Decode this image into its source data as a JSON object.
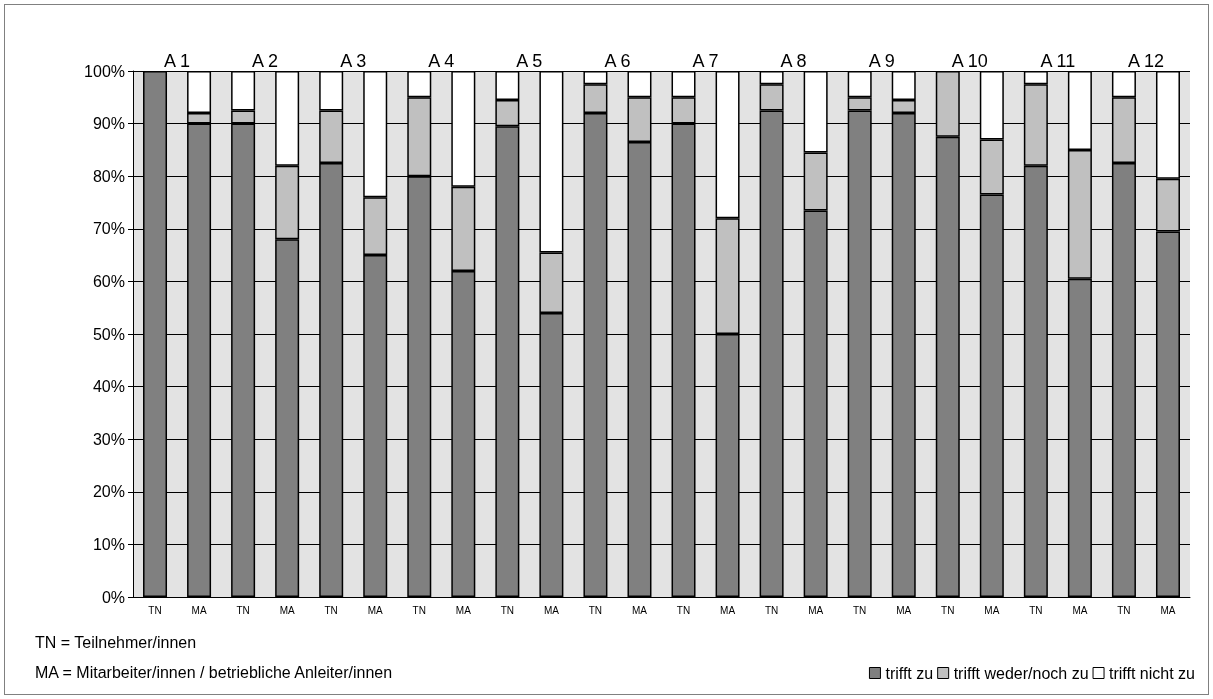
{
  "chart_data": {
    "type": "bar",
    "stacked": true,
    "categories": [
      "TN",
      "MA",
      "TN",
      "MA",
      "TN",
      "MA",
      "TN",
      "MA",
      "TN",
      "MA",
      "TN",
      "MA",
      "TN",
      "MA",
      "TN",
      "MA",
      "TN",
      "MA",
      "TN",
      "MA",
      "TN",
      "MA",
      "TN",
      "MA"
    ],
    "series": [
      {
        "name": "trifft zu",
        "color": "#808080",
        "values": [
          100,
          90,
          90,
          68,
          82.5,
          65,
          80,
          62,
          89.5,
          54,
          92,
          86.5,
          90,
          50,
          92.5,
          73.5,
          92.5,
          92,
          87.5,
          76.5,
          82,
          60.5,
          82.5,
          69.5
        ]
      },
      {
        "name": "trifft weder/noch zu",
        "color": "#c0c0c0",
        "values": [
          0,
          2,
          2.5,
          14,
          10,
          11,
          15,
          16,
          5,
          11.5,
          5.5,
          8.5,
          5,
          22,
          5,
          11,
          2.5,
          2.5,
          12.5,
          10.5,
          15.5,
          24.5,
          12.5,
          10
        ]
      },
      {
        "name": "trifft nicht zu",
        "color": "#ffffff",
        "values": [
          0,
          8,
          7.5,
          18,
          7.5,
          24,
          5,
          22,
          5.5,
          34.5,
          2.5,
          5,
          5,
          28,
          2.5,
          15.5,
          5,
          5.5,
          0,
          13,
          2.5,
          15,
          5,
          20.5
        ]
      }
    ],
    "ylim": [
      0,
      100
    ],
    "yticks": [
      {
        "value": 0,
        "label": "0%"
      },
      {
        "value": 10,
        "label": "10%"
      },
      {
        "value": 20,
        "label": "20%"
      },
      {
        "value": 30,
        "label": "30%"
      },
      {
        "value": 40,
        "label": "40%"
      },
      {
        "value": 50,
        "label": "50%"
      },
      {
        "value": 60,
        "label": "60%"
      },
      {
        "value": 70,
        "label": "70%"
      },
      {
        "value": 80,
        "label": "80%"
      },
      {
        "value": 90,
        "label": "90%"
      },
      {
        "value": 100,
        "label": "100%"
      }
    ],
    "grid": "y",
    "legend": "bottom right",
    "annotations": [
      "A 1",
      "A 2",
      "A 3",
      "A 4",
      "A 5",
      "A 6",
      "A 7",
      "A 8",
      "A 9",
      "A 10",
      "A 11",
      "A 12",
      "TN = Teilnehmer/innen",
      "MA = Mitarbeiter/innen / betriebliche Anleiter/innen"
    ]
  }
}
